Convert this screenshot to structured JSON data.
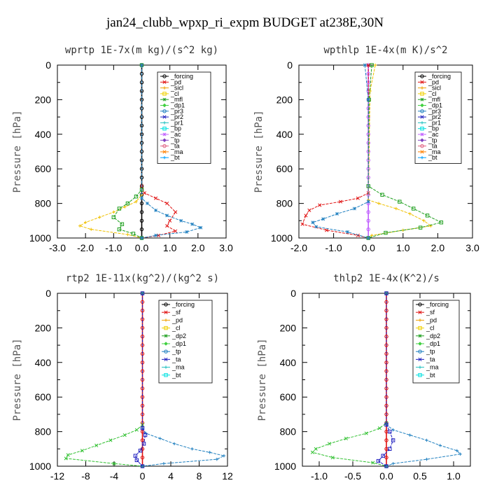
{
  "figure_title": "jan24_clubb_wpxp_ri_expm  BUDGET at238E,30N",
  "chart_data": [
    {
      "type": "line",
      "title": "wprtp  1E-7x(m kg)/(s^2 kg)",
      "ylabel": "Pressure [hPa]",
      "xlim": [
        -3.0,
        3.0
      ],
      "ylim": [
        1000,
        0
      ],
      "xticks": [
        "-3.0",
        "-2.0",
        "-1.0",
        "0.0",
        "1.0",
        "2.0",
        "3.0"
      ],
      "yticks": [
        "0",
        "200",
        "400",
        "600",
        "800",
        "1000"
      ],
      "legend": [
        "_forcing",
        "_pd",
        "_sicl",
        "_cl",
        "_mfl",
        "_dp1",
        "_pr3",
        "_pr2",
        "_pr1",
        "_bp",
        "_ac",
        "_tp",
        "_ta",
        "_ma",
        "_bt"
      ],
      "series": [
        {
          "name": "_forcing",
          "color": "#000000",
          "x": [
            0,
            0,
            0,
            0,
            0,
            0,
            0,
            0,
            0,
            0,
            0,
            0,
            0,
            0,
            0,
            0,
            0,
            0,
            0,
            0,
            0
          ],
          "y": [
            0,
            50,
            100,
            150,
            200,
            250,
            300,
            350,
            400,
            450,
            500,
            550,
            600,
            650,
            700,
            750,
            800,
            850,
            900,
            950,
            1000
          ]
        },
        {
          "name": "_dp1",
          "color": "#e01010",
          "x": [
            0,
            0,
            0.1,
            0.5,
            0.9,
            1.2,
            1.0,
            0.9,
            1.2,
            0.6,
            0
          ],
          "y": [
            0,
            700,
            740,
            770,
            800,
            850,
            900,
            930,
            960,
            985,
            1000
          ]
        },
        {
          "name": "_pr1",
          "color": "#f0c000",
          "x": [
            0,
            0,
            -0.2,
            -0.6,
            -1.0,
            -1.5,
            -2.0,
            -2.2,
            -1.8,
            -0.5,
            0
          ],
          "y": [
            0,
            750,
            790,
            820,
            850,
            880,
            910,
            930,
            950,
            980,
            1000
          ]
        },
        {
          "name": "_ac",
          "color": "#20a020",
          "x": [
            0,
            0,
            -0.2,
            -0.5,
            -0.8,
            -1.0,
            -0.7,
            -0.8,
            -0.3,
            0
          ],
          "y": [
            0,
            720,
            760,
            800,
            830,
            880,
            920,
            950,
            975,
            1000
          ]
        },
        {
          "name": "_tp",
          "color": "#2080c0",
          "x": [
            0,
            0,
            0.2,
            0.5,
            0.9,
            1.4,
            1.8,
            2.1,
            1.6,
            0.5,
            0
          ],
          "y": [
            0,
            770,
            800,
            840,
            870,
            900,
            920,
            940,
            965,
            985,
            1000
          ]
        }
      ]
    },
    {
      "type": "line",
      "title": "wpthlp  1E-4x(m K)/s^2",
      "ylabel": "Pressure [hPa]",
      "xlim": [
        -2.0,
        3.0
      ],
      "ylim": [
        1000,
        0
      ],
      "xticks": [
        "-2.0",
        "-1.0",
        "0.0",
        "1.0",
        "2.0",
        "3.0"
      ],
      "yticks": [
        "0",
        "200",
        "400",
        "600",
        "800",
        "1000"
      ],
      "legend": [
        "_forcing",
        "_pd",
        "_sicl",
        "_cl",
        "_mfl",
        "_dp1",
        "_pr3",
        "_pr2",
        "_pr1",
        "_bp",
        "_ac",
        "_tp",
        "_ta",
        "_ma",
        "_bt"
      ],
      "series": [
        {
          "name": "_bt",
          "color": "#c060ff",
          "x": [
            0,
            0,
            0,
            0,
            0,
            0,
            0,
            0,
            0,
            0,
            0,
            0,
            0,
            0,
            0,
            0,
            0,
            0,
            0,
            0,
            0
          ],
          "y": [
            0,
            50,
            100,
            150,
            200,
            250,
            300,
            350,
            400,
            450,
            500,
            550,
            600,
            650,
            700,
            750,
            800,
            850,
            900,
            950,
            1000
          ]
        },
        {
          "name": "_dp1",
          "color": "#e01010",
          "x": [
            0,
            0,
            -0.3,
            -0.8,
            -1.4,
            -1.7,
            -1.8,
            -1.9,
            -1.2,
            -0.3,
            0
          ],
          "y": [
            0,
            740,
            770,
            790,
            810,
            840,
            870,
            920,
            955,
            985,
            1000
          ]
        },
        {
          "name": "_pr1",
          "color": "#f0c000",
          "x": [
            0.2,
            0.05,
            0,
            0.3,
            0.8,
            1.2,
            1.6,
            1.8,
            1.0,
            0.1,
            0
          ],
          "y": [
            0,
            150,
            780,
            800,
            830,
            860,
            900,
            930,
            955,
            985,
            1000
          ]
        },
        {
          "name": "_ac",
          "color": "#20a020",
          "x": [
            0.1,
            0.02,
            0,
            0.4,
            0.9,
            1.3,
            1.7,
            2.1,
            1.5,
            0.5,
            0
          ],
          "y": [
            0,
            200,
            700,
            750,
            790,
            830,
            870,
            910,
            940,
            970,
            1000
          ]
        },
        {
          "name": "_tp",
          "color": "#2080c0",
          "x": [
            -0.1,
            0,
            0,
            -0.4,
            -0.9,
            -1.3,
            -1.6,
            -1.5,
            -0.6,
            0
          ],
          "y": [
            0,
            200,
            790,
            830,
            860,
            890,
            910,
            935,
            965,
            1000
          ]
        }
      ]
    },
    {
      "type": "line",
      "title": "rtp2  1E-11x(kg^2)/(kg^2 s)",
      "ylabel": "Pressure [hPa]",
      "xlim": [
        -12,
        12
      ],
      "ylim": [
        1000,
        0
      ],
      "xticks": [
        "-12",
        "-8",
        "-4",
        "0",
        "4",
        "8",
        "12"
      ],
      "yticks": [
        "0",
        "200",
        "400",
        "600",
        "800",
        "1000"
      ],
      "legend": [
        "_forcing",
        "_sf",
        "_pd",
        "_cl",
        "_dp2",
        "_dp1",
        "_tp",
        "_ta",
        "_ma",
        "_bt"
      ],
      "series": [
        {
          "name": "_forcing",
          "color": "#e01010",
          "x": [
            0,
            0,
            0,
            0,
            0,
            0,
            0,
            0,
            0,
            0,
            0,
            0,
            0,
            0,
            0,
            0,
            0,
            0,
            0,
            0,
            0
          ],
          "y": [
            0,
            50,
            100,
            150,
            200,
            250,
            300,
            350,
            400,
            450,
            500,
            550,
            600,
            650,
            700,
            750,
            800,
            850,
            900,
            950,
            1000
          ]
        },
        {
          "name": "_dp1",
          "color": "#30c030",
          "x": [
            0,
            0,
            -0.8,
            -2.5,
            -4.5,
            -6.5,
            -8.5,
            -10.5,
            -10.8,
            -4,
            0
          ],
          "y": [
            0,
            760,
            790,
            820,
            850,
            880,
            910,
            935,
            955,
            985,
            1000
          ]
        },
        {
          "name": "_tp",
          "color": "#2080c0",
          "x": [
            0,
            0,
            0.5,
            2.5,
            4.5,
            7,
            9.5,
            11.5,
            10.5,
            3,
            0
          ],
          "y": [
            0,
            780,
            810,
            840,
            870,
            900,
            920,
            940,
            960,
            985,
            1000
          ]
        },
        {
          "name": "_ta",
          "color": "#2020c0",
          "x": [
            0,
            0,
            0.4,
            0.2,
            -0.3,
            -1.0,
            -0.8,
            0
          ],
          "y": [
            0,
            780,
            820,
            870,
            910,
            940,
            965,
            1000
          ]
        }
      ]
    },
    {
      "type": "line",
      "title": "thlp2  1E-4x(K^2)/s",
      "ylabel": "Pressure [hPa]",
      "xlim": [
        -1.25,
        1.25
      ],
      "ylim": [
        1000,
        0
      ],
      "xticks": [
        "-1.0",
        "-0.5",
        "0.0",
        "0.5",
        "1.0"
      ],
      "yticks": [
        "0",
        "200",
        "400",
        "600",
        "800",
        "1000"
      ],
      "legend": [
        "_forcing",
        "_sf",
        "_pd",
        "_cl",
        "_dp2",
        "_dp1",
        "_tp",
        "_ta",
        "_ma",
        "_bt"
      ],
      "series": [
        {
          "name": "_forcing",
          "color": "#e01010",
          "x": [
            0,
            0,
            0,
            0,
            0,
            0,
            0,
            0,
            0,
            0,
            0,
            0,
            0,
            0,
            0,
            0,
            0,
            0,
            0,
            0,
            0
          ],
          "y": [
            0,
            50,
            100,
            150,
            200,
            250,
            300,
            350,
            400,
            450,
            500,
            550,
            600,
            650,
            700,
            750,
            800,
            850,
            900,
            950,
            1000
          ]
        },
        {
          "name": "_dp1",
          "color": "#30c030",
          "x": [
            0,
            0,
            -0.1,
            -0.3,
            -0.6,
            -0.85,
            -1.05,
            -1.1,
            -0.8,
            -0.2,
            0
          ],
          "y": [
            0,
            750,
            780,
            810,
            840,
            870,
            900,
            920,
            950,
            980,
            1000
          ]
        },
        {
          "name": "_tp",
          "color": "#2080c0",
          "x": [
            0,
            0,
            0.1,
            0.35,
            0.6,
            0.8,
            1.05,
            1.1,
            0.6,
            0.1,
            0
          ],
          "y": [
            0,
            760,
            790,
            820,
            850,
            880,
            910,
            930,
            960,
            985,
            1000
          ]
        },
        {
          "name": "_ta",
          "color": "#2020c0",
          "x": [
            0,
            0,
            0.05,
            0.1,
            0.05,
            -0.05,
            -0.12,
            0
          ],
          "y": [
            0,
            760,
            800,
            850,
            900,
            940,
            970,
            1000
          ]
        }
      ]
    }
  ]
}
